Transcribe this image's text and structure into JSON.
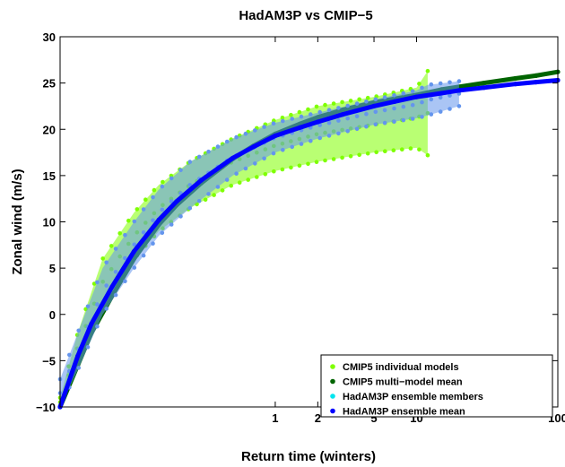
{
  "chart_data": {
    "type": "scatter",
    "title": "HadAM3P vs CMIP−5",
    "xlabel": "Return time (winters)",
    "ylabel": "Zonal wind (m/s)",
    "xscale": "log",
    "xlim": [
      0.03,
      100
    ],
    "ylim": [
      -10,
      30
    ],
    "xticks": [
      1,
      2,
      5,
      10,
      100
    ],
    "xtick_labels": [
      "1",
      "2",
      "5",
      "10",
      "100"
    ],
    "yticks": [
      -10,
      -5,
      0,
      5,
      10,
      15,
      20,
      25,
      30
    ],
    "ytick_labels": [
      "−10",
      "−5",
      "0",
      "5",
      "10",
      "15",
      "20",
      "25",
      "30"
    ],
    "grid": false,
    "legend_position": "lower-right",
    "series": [
      {
        "name": "CMIP5 individual models",
        "color": "#7fff00",
        "style": "band",
        "x": [
          0.03,
          0.04,
          0.06,
          0.1,
          0.15,
          0.25,
          0.5,
          1,
          2,
          5,
          10,
          12
        ],
        "y_low": [
          -10,
          -5,
          1,
          6,
          9,
          11.5,
          14,
          15.5,
          16.5,
          17.5,
          18,
          17.2
        ],
        "y_high": [
          -9,
          -2,
          6,
          11,
          14,
          16.5,
          19,
          21,
          22.5,
          23.5,
          24.5,
          26.3
        ]
      },
      {
        "name": "CMIP5 multi−model mean",
        "color": "#006400",
        "style": "line",
        "x": [
          0.03,
          0.04,
          0.05,
          0.07,
          0.1,
          0.15,
          0.2,
          0.3,
          0.5,
          0.7,
          1,
          1.5,
          2,
          3,
          5,
          7,
          10,
          15,
          20,
          30,
          50,
          70,
          100
        ],
        "y": [
          -10,
          -5.5,
          -2,
          2,
          6,
          9.7,
          11.8,
          14.2,
          16.8,
          18.2,
          19.5,
          20.6,
          21.3,
          22.1,
          22.9,
          23.3,
          23.7,
          24.3,
          24.6,
          25,
          25.5,
          25.8,
          26.2
        ]
      },
      {
        "name": "HadAM3P ensemble members",
        "color": "#6495ed",
        "style": "band",
        "x": [
          0.03,
          0.04,
          0.06,
          0.1,
          0.15,
          0.25,
          0.5,
          1,
          2,
          5,
          10,
          12,
          20
        ],
        "y_low": [
          -10,
          -6,
          0,
          5,
          8.5,
          11.5,
          15,
          17.5,
          19,
          20.5,
          21.2,
          21.5,
          22.5
        ],
        "y_high": [
          -7,
          -2,
          5,
          10,
          13.5,
          16.5,
          19,
          20.7,
          21.8,
          23.2,
          24.2,
          24.8,
          25.2
        ]
      },
      {
        "name": "HadAM3P ensemble mean",
        "color": "#0000ff",
        "style": "line",
        "x": [
          0.03,
          0.04,
          0.05,
          0.07,
          0.1,
          0.15,
          0.2,
          0.3,
          0.5,
          0.7,
          1,
          1.5,
          2,
          3,
          5,
          7,
          10,
          15,
          20,
          30,
          50,
          70,
          100
        ],
        "y": [
          -10,
          -4.5,
          -1,
          3,
          6.8,
          10.2,
          12.2,
          14.5,
          16.9,
          18.1,
          19.3,
          20.2,
          20.8,
          21.6,
          22.5,
          23,
          23.5,
          23.9,
          24.2,
          24.5,
          24.9,
          25.1,
          25.3
        ]
      }
    ]
  }
}
